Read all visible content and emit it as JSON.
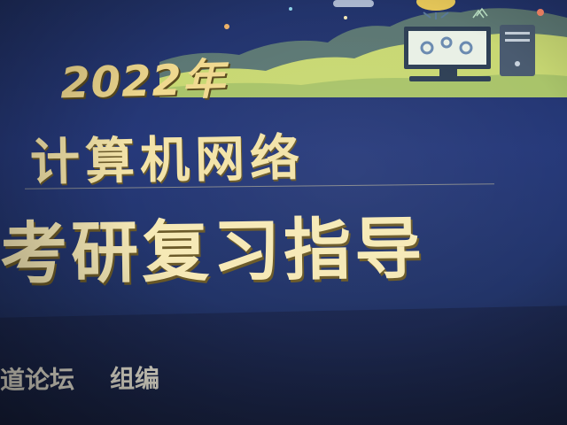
{
  "cover": {
    "year": "2022年",
    "title_line1": "计算机网络",
    "title_line2": "考研复习指导",
    "editor_name": "道论坛",
    "editor_role": "组编"
  },
  "colors": {
    "background": "#26397a",
    "title_text": "#f6e9b6",
    "year_text": "#f0d98f",
    "landscape_accent": "#c8d873"
  },
  "icons": [
    "computer-monitor-icon",
    "gears-icon",
    "tower-pc-icon",
    "speech-bubble-icon"
  ]
}
